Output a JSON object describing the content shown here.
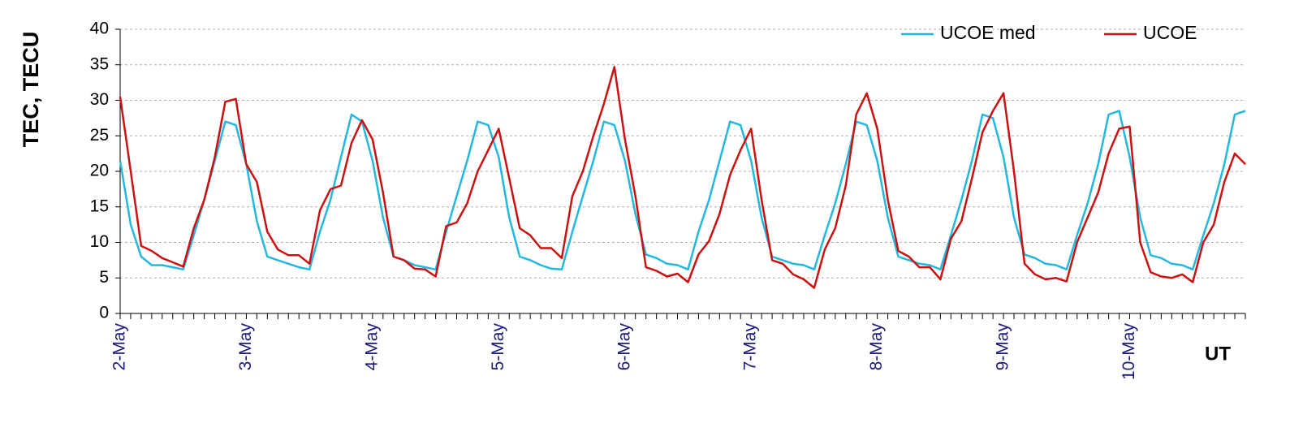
{
  "chart_data": {
    "type": "line",
    "y_label": "TEC, TECU",
    "x_label": "UT",
    "categories": [
      "2-May",
      null,
      null,
      null,
      null,
      null,
      null,
      null,
      null,
      null,
      null,
      null,
      "3-May",
      null,
      null,
      null,
      null,
      null,
      null,
      null,
      null,
      null,
      null,
      null,
      "4-May",
      null,
      null,
      null,
      null,
      null,
      null,
      null,
      null,
      null,
      null,
      null,
      "5-May",
      null,
      null,
      null,
      null,
      null,
      null,
      null,
      null,
      null,
      null,
      null,
      "6-May",
      null,
      null,
      null,
      null,
      null,
      null,
      null,
      null,
      null,
      null,
      null,
      "7-May",
      null,
      null,
      null,
      null,
      null,
      null,
      null,
      null,
      null,
      null,
      null,
      "8-May",
      null,
      null,
      null,
      null,
      null,
      null,
      null,
      null,
      null,
      null,
      null,
      "9-May",
      null,
      null,
      null,
      null,
      null,
      null,
      null,
      null,
      null,
      null,
      null,
      "10-May",
      null,
      null,
      null,
      null,
      null,
      null,
      null,
      null,
      null,
      null,
      null
    ],
    "series": [
      {
        "name": "UCOE med",
        "color": "#22b8e0",
        "values": [
          21.5,
          12.5,
          8,
          6.8,
          6.8,
          6.5,
          6.2,
          11,
          16,
          21.5,
          27,
          26.5,
          21,
          13,
          8,
          7.5,
          7,
          6.5,
          6.2,
          11.5,
          16,
          22,
          28,
          27,
          21.5,
          13.5,
          8,
          7.5,
          6.8,
          6.5,
          6.2,
          11.5,
          16.5,
          21.5,
          27,
          26.5,
          22,
          13.5,
          8,
          7.5,
          6.8,
          6.3,
          6.2,
          11.5,
          16.5,
          21.5,
          27,
          26.5,
          21.5,
          14,
          8.3,
          7.8,
          7,
          6.8,
          6.2,
          11.5,
          16,
          21.5,
          27,
          26.5,
          21.5,
          13.5,
          8,
          7.5,
          7,
          6.8,
          6.2,
          11,
          15.5,
          21,
          27,
          26.5,
          21.5,
          13.5,
          8,
          7.5,
          7,
          6.8,
          6.2,
          11,
          16,
          21.5,
          28,
          27.5,
          22,
          13.5,
          8.3,
          7.8,
          7,
          6.8,
          6.2,
          11,
          15.5,
          21,
          28,
          28.5,
          22,
          13.5,
          8.2,
          7.8,
          7,
          6.8,
          6.2,
          11,
          15.5,
          21,
          28,
          28.5
        ]
      },
      {
        "name": "UCOE",
        "color": "#cc1111",
        "values": [
          30.5,
          20,
          9.5,
          8.8,
          7.8,
          7.2,
          6.6,
          12,
          16,
          22,
          29.8,
          30.2,
          21,
          18.5,
          11.5,
          9,
          8.2,
          8.2,
          7,
          14.5,
          17.5,
          18,
          24,
          27.2,
          24.5,
          17,
          8,
          7.5,
          6.3,
          6.2,
          5.2,
          12.3,
          12.8,
          15.5,
          20,
          23,
          26,
          19,
          12,
          11,
          9.2,
          9.2,
          7.8,
          16.5,
          20,
          25,
          29.5,
          34.7,
          24.5,
          16.5,
          6.5,
          6,
          5.2,
          5.6,
          4.4,
          8.3,
          10.2,
          14,
          19.5,
          23,
          26,
          16,
          7.5,
          7,
          5.5,
          4.8,
          3.6,
          9,
          12,
          18,
          28,
          31,
          26,
          16,
          8.8,
          8,
          6.5,
          6.5,
          4.8,
          10.5,
          13,
          19,
          25.5,
          28.5,
          31,
          20,
          7,
          5.5,
          4.8,
          5,
          4.5,
          10,
          13.5,
          17,
          22.5,
          26,
          26.3,
          10,
          5.8,
          5.2,
          5,
          5.5,
          4.4,
          10,
          12.5,
          18.5,
          22.5,
          21
        ]
      }
    ],
    "ylim": [
      0,
      40
    ],
    "yticks": [
      0,
      5,
      10,
      15,
      20,
      25,
      30,
      35,
      40
    ],
    "grid": true
  }
}
